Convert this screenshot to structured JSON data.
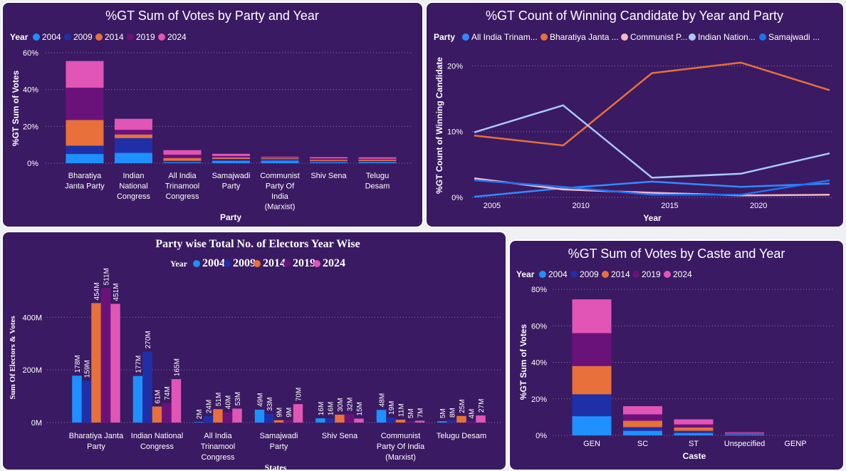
{
  "colors": {
    "y2004": "#1e90ff",
    "y2009": "#1f2fa8",
    "y2014": "#e8703a",
    "y2019": "#6b127a",
    "y2024": "#e055b5",
    "aitc": "#2f8cff",
    "bjp": "#e8703a",
    "cpim": "#f2b8c6",
    "inc": "#a9c8ff",
    "sp": "#1f73f0"
  },
  "panel_party_votes": {
    "title": "%GT Sum of Votes by Party and Year",
    "legend_title": "Year",
    "legend_items": [
      "2004",
      "2009",
      "2014",
      "2019",
      "2024"
    ]
  },
  "panel_winning": {
    "title": "%GT Count of Winning Candidate by Year and Party",
    "legend_title": "Party",
    "legend_items": [
      "All India Trinam...",
      "Bharatiya Janta ...",
      "Communist P...",
      "Indian Nation...",
      "Samajwadi ..."
    ]
  },
  "panel_electors": {
    "title": "Party wise Total No. of Electors Year Wise",
    "legend_title": "Year",
    "legend_items": [
      "2004",
      "2009",
      "2014",
      "2019",
      "2024"
    ]
  },
  "panel_caste": {
    "title": "%GT Sum of Votes by Caste and Year",
    "legend_title": "Year",
    "legend_items": [
      "2004",
      "2009",
      "2014",
      "2019",
      "2024"
    ]
  },
  "chart_data": [
    {
      "type": "bar",
      "stacked": true,
      "title": "%GT Sum of Votes by Party and Year",
      "xlabel": "Party",
      "ylabel": "%GT Sum of Votes",
      "ylim": [
        0,
        60
      ],
      "yticks": [
        "0%",
        "20%",
        "40%",
        "60%"
      ],
      "categories": [
        [
          "Bharatiya",
          "Janta Party"
        ],
        [
          "Indian",
          "National",
          "Congress"
        ],
        [
          "All India",
          "Trinamool",
          "Congress"
        ],
        [
          "Samajwadi",
          "Party"
        ],
        [
          "Communist",
          "Party Of",
          "India",
          "(Marxist)"
        ],
        [
          "Shiv Sena"
        ],
        [
          "Telugu",
          "Desam"
        ]
      ],
      "series": [
        {
          "name": "2004",
          "values": [
            5.0,
            5.6,
            0.5,
            1.3,
            1.4,
            0.5,
            0.6
          ]
        },
        {
          "name": "2009",
          "values": [
            4.5,
            8.0,
            0.8,
            1.0,
            0.8,
            0.6,
            0.6
          ]
        },
        {
          "name": "2014",
          "values": [
            14.0,
            2.0,
            1.5,
            0.8,
            0.5,
            0.7,
            0.7
          ]
        },
        {
          "name": "2019",
          "values": [
            17.5,
            2.5,
            1.8,
            0.8,
            0.4,
            0.8,
            0.5
          ]
        },
        {
          "name": "2024",
          "values": [
            14.5,
            6.0,
            2.5,
            1.2,
            0.4,
            0.7,
            0.8
          ]
        }
      ]
    },
    {
      "type": "line",
      "title": "%GT Count of Winning Candidate by Year and Party",
      "xlabel": "Year",
      "ylabel": "%GT Count of Winning Candidate",
      "x": [
        2004,
        2009,
        2014,
        2019,
        2024
      ],
      "xticks": [
        2005,
        2010,
        2015,
        2020
      ],
      "ylim": [
        0,
        22
      ],
      "yticks": [
        "0%",
        "10%",
        "20%"
      ],
      "series": [
        {
          "name": "All India Trinam...",
          "values": [
            0.1,
            1.4,
            2.4,
            1.6,
            2.1
          ]
        },
        {
          "name": "Bharatiya Janta ...",
          "values": [
            9.4,
            7.9,
            18.9,
            20.5,
            16.3
          ]
        },
        {
          "name": "Communist P...",
          "values": [
            2.9,
            1.2,
            0.7,
            0.3,
            0.4
          ]
        },
        {
          "name": "Indian Nation...",
          "values": [
            9.9,
            14.0,
            3.0,
            3.6,
            6.7
          ]
        },
        {
          "name": "Samajwadi ...",
          "values": [
            2.6,
            1.6,
            0.4,
            0.4,
            2.6
          ]
        }
      ]
    },
    {
      "type": "bar",
      "grouped": true,
      "title": "Party wise Total No. of Electors Year Wise",
      "xlabel": "States",
      "ylabel": "Sum Of Electors & Votes",
      "ylim": [
        0,
        520
      ],
      "yticks": [
        "0M",
        "200M",
        "400M"
      ],
      "categories": [
        [
          "Bharatiya Janta",
          "Party"
        ],
        [
          "Indian National",
          "Congress"
        ],
        [
          "All India",
          "Trinamool",
          "Congress"
        ],
        [
          "Samajwadi",
          "Party"
        ],
        [
          "Shiv Sena"
        ],
        [
          "Communist",
          "Party Of India",
          "(Marxist)"
        ],
        [
          "Telugu Desam"
        ]
      ],
      "series": [
        {
          "name": "2004",
          "values": [
            178,
            177,
            2,
            49,
            16,
            48,
            5
          ]
        },
        {
          "name": "2009",
          "values": [
            159,
            270,
            24,
            33,
            16,
            19,
            8
          ]
        },
        {
          "name": "2014",
          "values": [
            454,
            61,
            51,
            9,
            30,
            11,
            25
          ]
        },
        {
          "name": "2019",
          "values": [
            511,
            74,
            40,
            9,
            32,
            5,
            4
          ]
        },
        {
          "name": "2024",
          "values": [
            451,
            165,
            53,
            70,
            15,
            7,
            27
          ]
        }
      ]
    },
    {
      "type": "bar",
      "stacked": true,
      "title": "%GT Sum of Votes by Caste and Year",
      "xlabel": "Caste",
      "ylabel": "%GT Sum of Votes",
      "ylim": [
        0,
        80
      ],
      "yticks": [
        "0%",
        "20%",
        "40%",
        "60%",
        "80%"
      ],
      "categories": [
        [
          "GEN"
        ],
        [
          "SC"
        ],
        [
          "ST"
        ],
        [
          "Unspecified"
        ],
        [
          "GENP"
        ]
      ],
      "series": [
        {
          "name": "2004",
          "values": [
            10.5,
            2.5,
            1.3,
            0.4,
            0
          ]
        },
        {
          "name": "2009",
          "values": [
            12.0,
            2.0,
            1.2,
            0.3,
            0
          ]
        },
        {
          "name": "2014",
          "values": [
            15.5,
            3.5,
            1.8,
            0.3,
            0
          ]
        },
        {
          "name": "2019",
          "values": [
            18.0,
            3.5,
            1.7,
            0.3,
            0
          ]
        },
        {
          "name": "2024",
          "values": [
            18.5,
            4.5,
            2.8,
            0.4,
            0
          ]
        }
      ]
    }
  ]
}
